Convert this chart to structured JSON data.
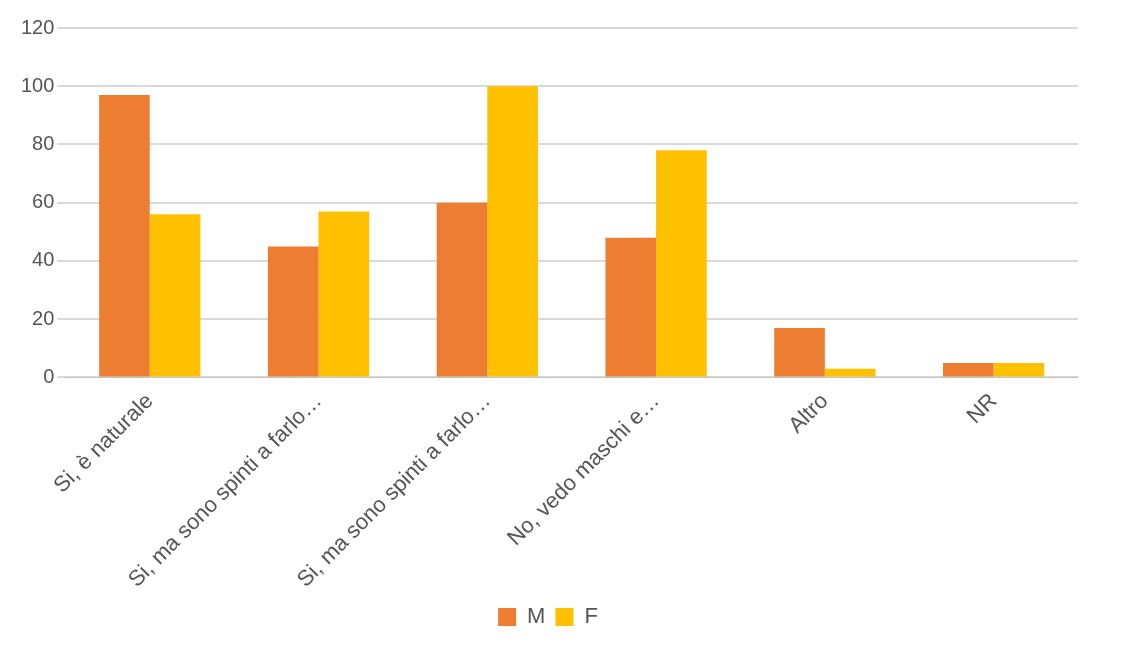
{
  "chart_data": {
    "type": "bar",
    "categories": [
      "Si, è naturale",
      "Si, ma sono spinti a farlo…",
      "Si, ma sono spinti a farlo…",
      "No, vedo maschi e…",
      "Altro",
      "NR"
    ],
    "series": [
      {
        "name": "M",
        "color": "#ed7d31",
        "values": [
          97,
          45,
          60,
          48,
          17,
          5
        ]
      },
      {
        "name": "F",
        "color": "#ffc000",
        "values": [
          56,
          57,
          100,
          78,
          3,
          5
        ]
      }
    ],
    "ylim": [
      0,
      120
    ],
    "yticks": [
      0,
      20,
      40,
      60,
      80,
      100,
      120
    ],
    "grid": "y",
    "legend": "bottom"
  }
}
